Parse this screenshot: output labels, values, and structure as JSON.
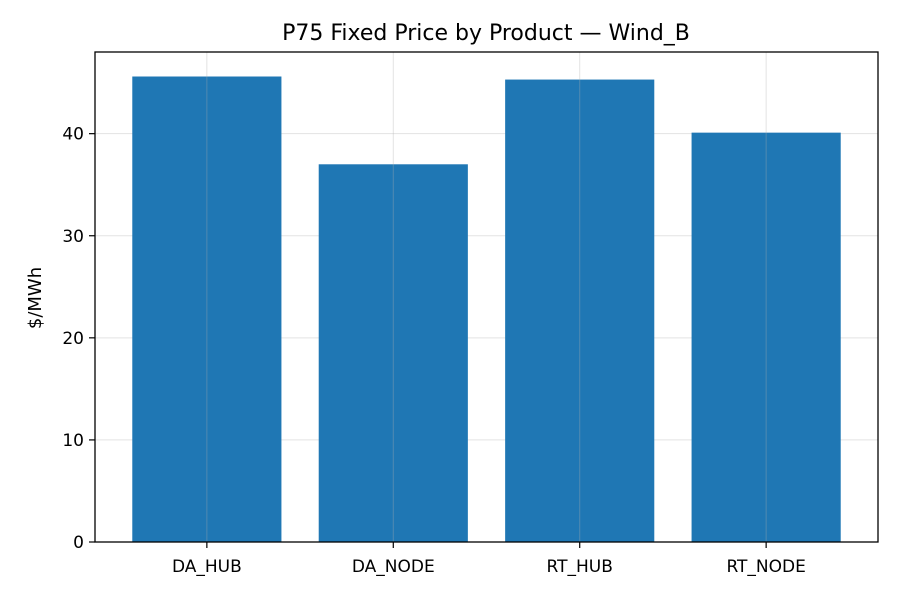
{
  "chart_data": {
    "type": "bar",
    "title": "P75 Fixed Price by Product — Wind_B",
    "xlabel": "",
    "ylabel": "$/MWh",
    "categories": [
      "DA_HUB",
      "DA_NODE",
      "RT_HUB",
      "RT_NODE"
    ],
    "values": [
      45.6,
      37.0,
      45.3,
      40.1
    ],
    "ylim": [
      0,
      48
    ],
    "yticks": [
      0,
      10,
      20,
      30,
      40
    ],
    "grid": true,
    "bar_color": "#1f77b4"
  }
}
